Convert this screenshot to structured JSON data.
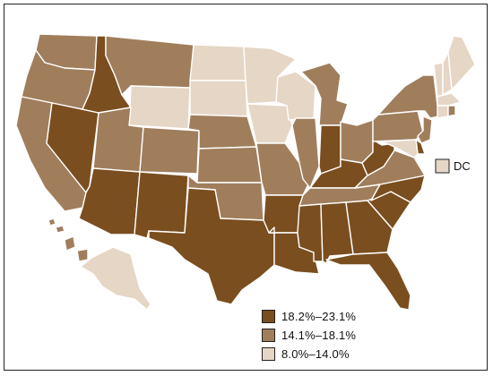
{
  "colors": {
    "high": "#7a4e1f",
    "mid": "#a07e5c",
    "low": "#e6d6c5",
    "border": "#ffffff",
    "frame": "#222222"
  },
  "legend": {
    "items": [
      {
        "label": "18.2%–23.1%",
        "level": "high"
      },
      {
        "label": "14.1%–18.1%",
        "level": "mid"
      },
      {
        "label": "8.0%–14.0%",
        "level": "low"
      }
    ]
  },
  "dc": {
    "label": "DC",
    "level": "low"
  },
  "states": {
    "WA": "mid",
    "OR": "mid",
    "CA": "mid",
    "NV": "high",
    "ID": "high",
    "MT": "mid",
    "WY": "low",
    "UT": "mid",
    "AZ": "high",
    "CO": "mid",
    "NM": "high",
    "ND": "low",
    "SD": "low",
    "NE": "mid",
    "KS": "mid",
    "OK": "mid",
    "TX": "high",
    "MN": "low",
    "IA": "low",
    "MO": "mid",
    "AR": "high",
    "LA": "high",
    "WI": "low",
    "IL": "mid",
    "MI": "mid",
    "IN": "high",
    "OH": "mid",
    "KY": "high",
    "TN": "mid",
    "MS": "high",
    "AL": "high",
    "GA": "high",
    "FL": "high",
    "SC": "high",
    "NC": "high",
    "VA": "mid",
    "WV": "high",
    "PA": "mid",
    "NY": "mid",
    "ME": "low",
    "NH": "low",
    "VT": "low",
    "MA": "low",
    "RI": "mid",
    "CT": "low",
    "NJ": "mid",
    "DE": "high",
    "MD": "low",
    "AK": "low",
    "HI": "mid"
  }
}
